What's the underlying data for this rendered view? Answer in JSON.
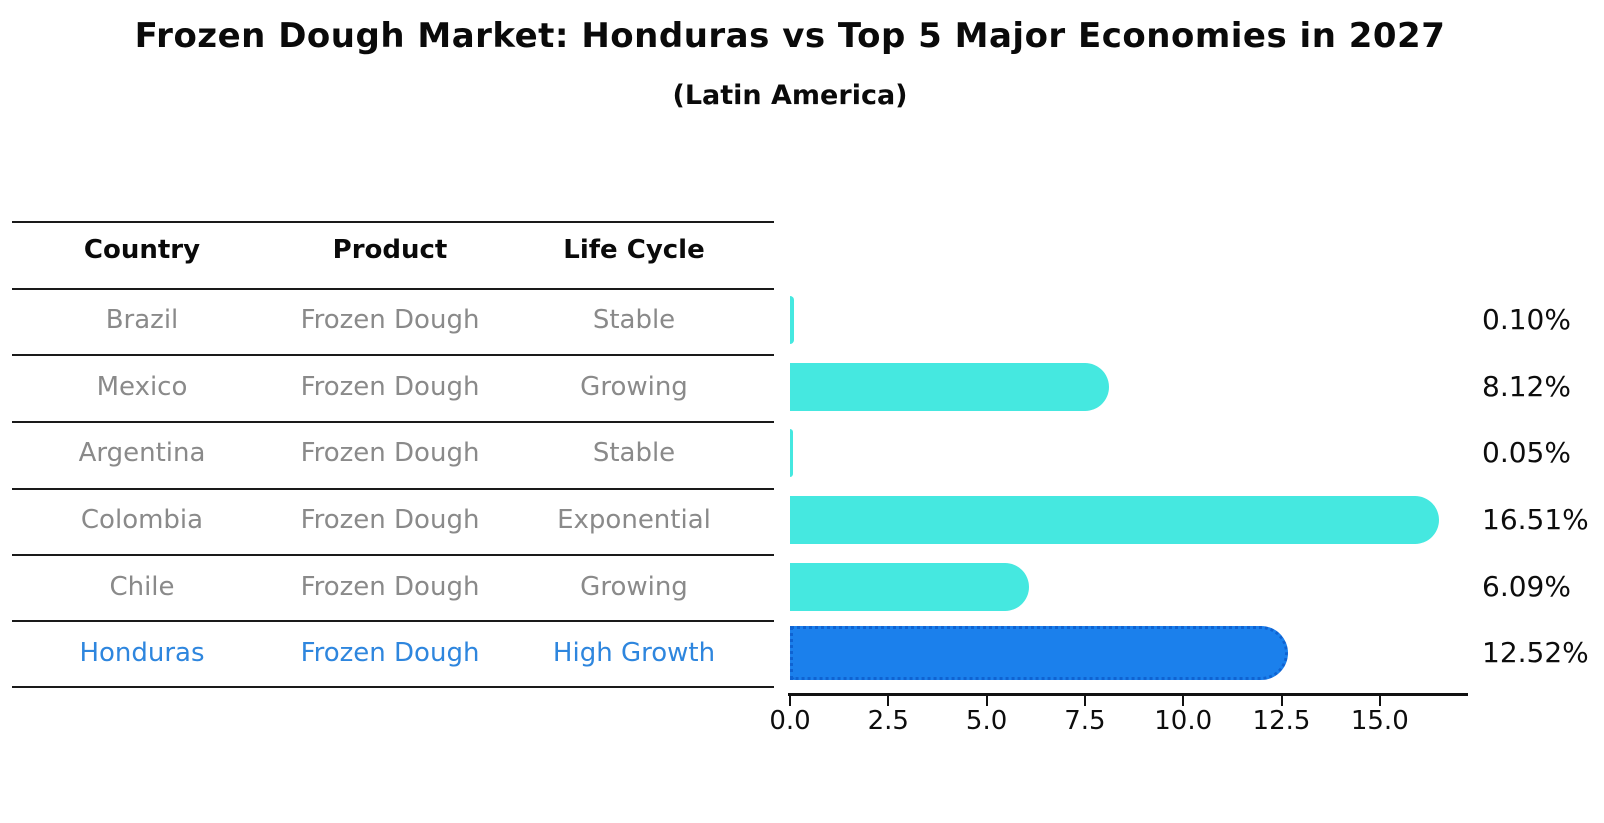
{
  "title": "Frozen Dough Market: Honduras vs Top 5 Major Economies in 2027",
  "subtitle": "(Latin America)",
  "table": {
    "headers": [
      "Country",
      "Product",
      "Life Cycle"
    ],
    "rows": [
      {
        "country": "Brazil",
        "product": "Frozen Dough",
        "life_cycle": "Stable"
      },
      {
        "country": "Mexico",
        "product": "Frozen Dough",
        "life_cycle": "Growing"
      },
      {
        "country": "Argentina",
        "product": "Frozen Dough",
        "life_cycle": "Stable"
      },
      {
        "country": "Colombia",
        "product": "Frozen Dough",
        "life_cycle": "Exponential"
      },
      {
        "country": "Chile",
        "product": "Frozen Dough",
        "life_cycle": "Growing"
      },
      {
        "country": "Honduras",
        "product": "Frozen Dough",
        "life_cycle": "High Growth"
      }
    ],
    "highlighted_row": "Honduras"
  },
  "chart_data": {
    "type": "bar",
    "orientation": "horizontal",
    "title": "Frozen Dough Market: Honduras vs Top 5 Major Economies in 2027",
    "subtitle": "(Latin America)",
    "categories": [
      "Brazil",
      "Mexico",
      "Argentina",
      "Colombia",
      "Chile",
      "Honduras"
    ],
    "values": [
      0.1,
      8.12,
      0.05,
      16.51,
      6.09,
      12.52
    ],
    "value_labels": [
      "0.10%",
      "8.12%",
      "0.05%",
      "16.51%",
      "6.09%",
      "12.52%"
    ],
    "xlabel": "",
    "ylabel": "",
    "xlim": [
      0,
      17.2
    ],
    "x_ticks": [
      0.0,
      2.5,
      5.0,
      7.5,
      10.0,
      12.5,
      15.0
    ],
    "x_tick_labels": [
      "0.0",
      "2.5",
      "5.0",
      "7.5",
      "10.0",
      "12.5",
      "15.0"
    ],
    "grid": false,
    "legend": "none",
    "highlighted_category": "Honduras",
    "colors": {
      "bar_default": "#45e8e0",
      "bar_highlight": "#1b80ec",
      "bar_highlight_border": "#0f63d2",
      "row_text": "#8a8a8a",
      "highlight_text": "#2e86de",
      "header_text": "#111111",
      "axis": "#111111"
    }
  }
}
